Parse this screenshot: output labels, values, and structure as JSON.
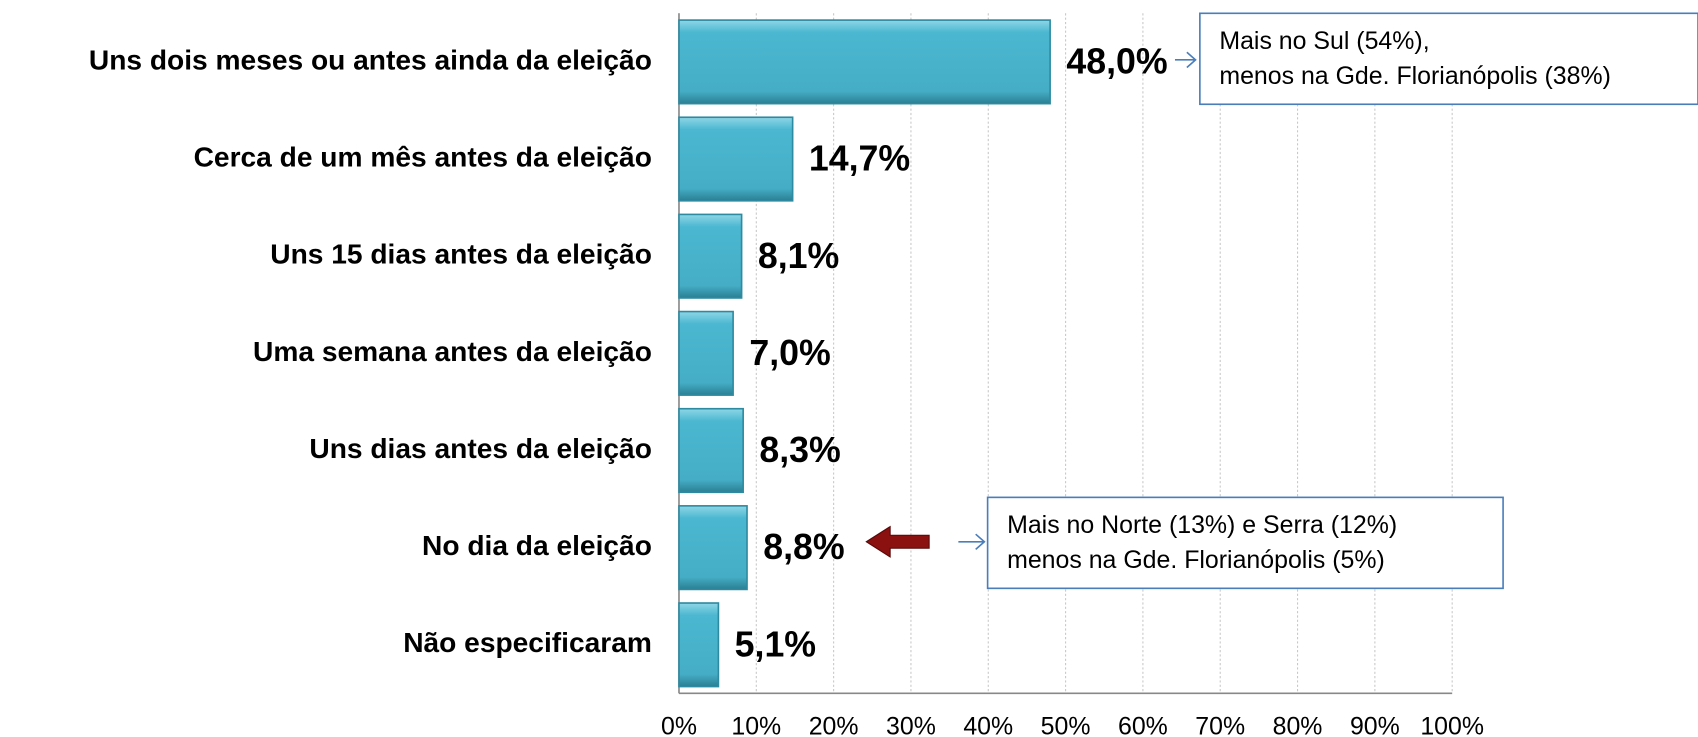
{
  "chart_data": {
    "type": "barh",
    "categories": [
      "Uns dois meses ou antes ainda da eleição",
      "Cerca de um mês antes da eleição",
      "Uns 15 dias antes da eleição",
      "Uma semana antes da eleição",
      "Uns dias antes da eleição",
      "No dia da eleição",
      "Não especificaram"
    ],
    "values": [
      48.0,
      14.7,
      8.1,
      7.0,
      8.3,
      8.8,
      5.1
    ],
    "value_labels": [
      "48,0%",
      "14,7%",
      "8,1%",
      "7,0%",
      "8,3%",
      "8,8%",
      "5,1%"
    ],
    "color": "#4bb7d0",
    "xlim": [
      0,
      100
    ],
    "xticks": [
      {
        "value": 0,
        "label": "0%"
      },
      {
        "value": 10,
        "label": "10%"
      },
      {
        "value": 20,
        "label": "20%"
      },
      {
        "value": 30,
        "label": "30%"
      },
      {
        "value": 40,
        "label": "40%"
      },
      {
        "value": 50,
        "label": "50%"
      },
      {
        "value": 60,
        "label": "60%"
      },
      {
        "value": 70,
        "label": "70%"
      },
      {
        "value": 80,
        "label": "80%"
      },
      {
        "value": 90,
        "label": "90%"
      },
      {
        "value": 100,
        "label": "100%"
      }
    ],
    "grid": true,
    "annotations": [
      {
        "lines": [
          "Mais no Sul (54%),",
          "menos na Gde. Florianópolis (38%)"
        ]
      },
      {
        "lines": [
          "Mais no Norte (13%) e Serra (12%)",
          "menos na Gde. Florianópolis (5%)"
        ]
      }
    ]
  }
}
